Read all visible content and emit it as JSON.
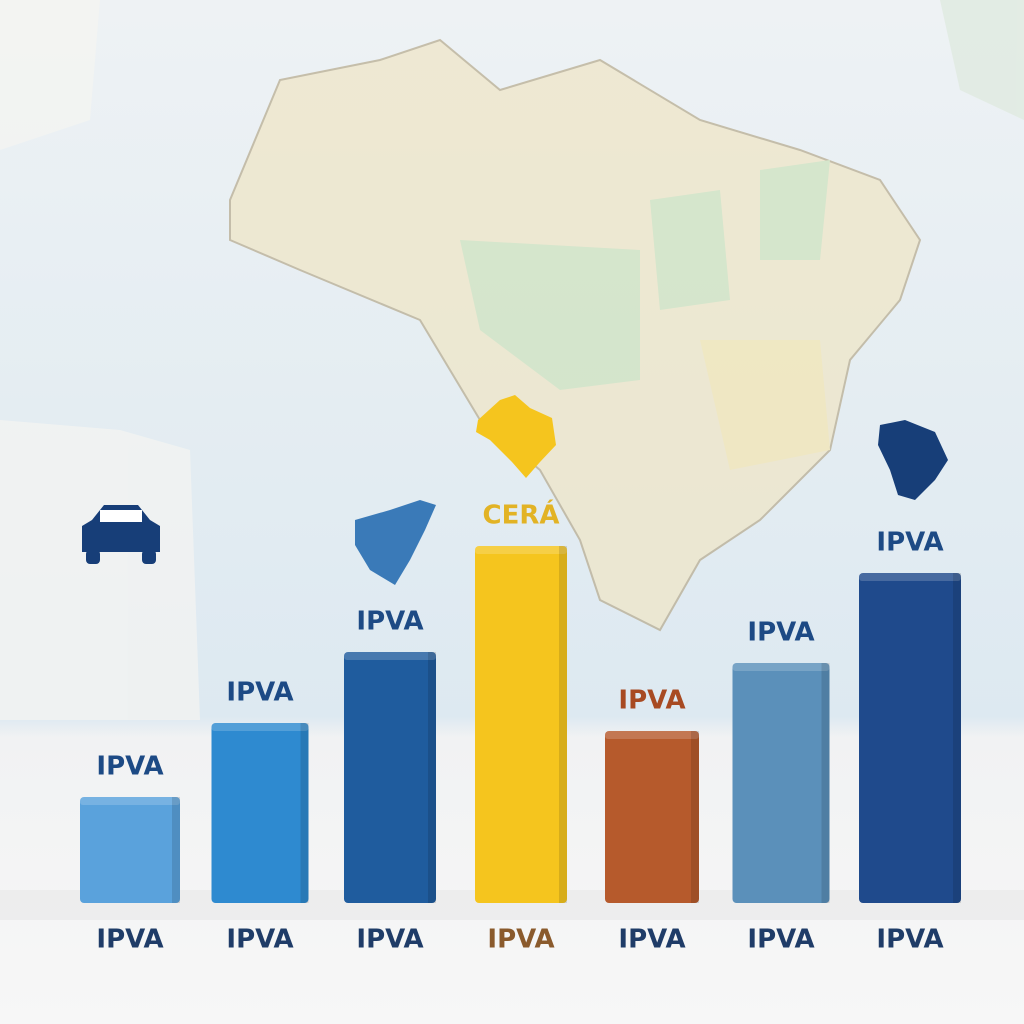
{
  "chart_data": {
    "type": "bar",
    "categories": [
      "IPVA",
      "IPVA",
      "IPVA",
      "IPVA",
      "IPVA",
      "IPVA",
      "IPVA"
    ],
    "values": [
      106,
      180,
      251,
      357,
      172,
      240,
      330
    ],
    "colors": [
      "#5aa2dc",
      "#2e8ad0",
      "#1f5c9e",
      "#f5c51e",
      "#b65a2c",
      "#5b90ba",
      "#1f4a8c"
    ],
    "annotations": [
      "IPVA",
      "IPVA",
      "IPVA",
      "CERÁ",
      "IPVA",
      "IPVA",
      "IPVA"
    ],
    "annotation_colors": [
      "#1d4a85",
      "#1d4a85",
      "#1d4a85",
      "#e2b325",
      "#a84a22",
      "#1d4a85",
      "#1d4a85"
    ],
    "category_colors": [
      "#1f3c68",
      "#1f3c68",
      "#1f3c68",
      "#8a5a2c",
      "#1f3c68",
      "#1f3c68",
      "#1f3c68"
    ],
    "ylim": [
      0,
      400
    ]
  }
}
